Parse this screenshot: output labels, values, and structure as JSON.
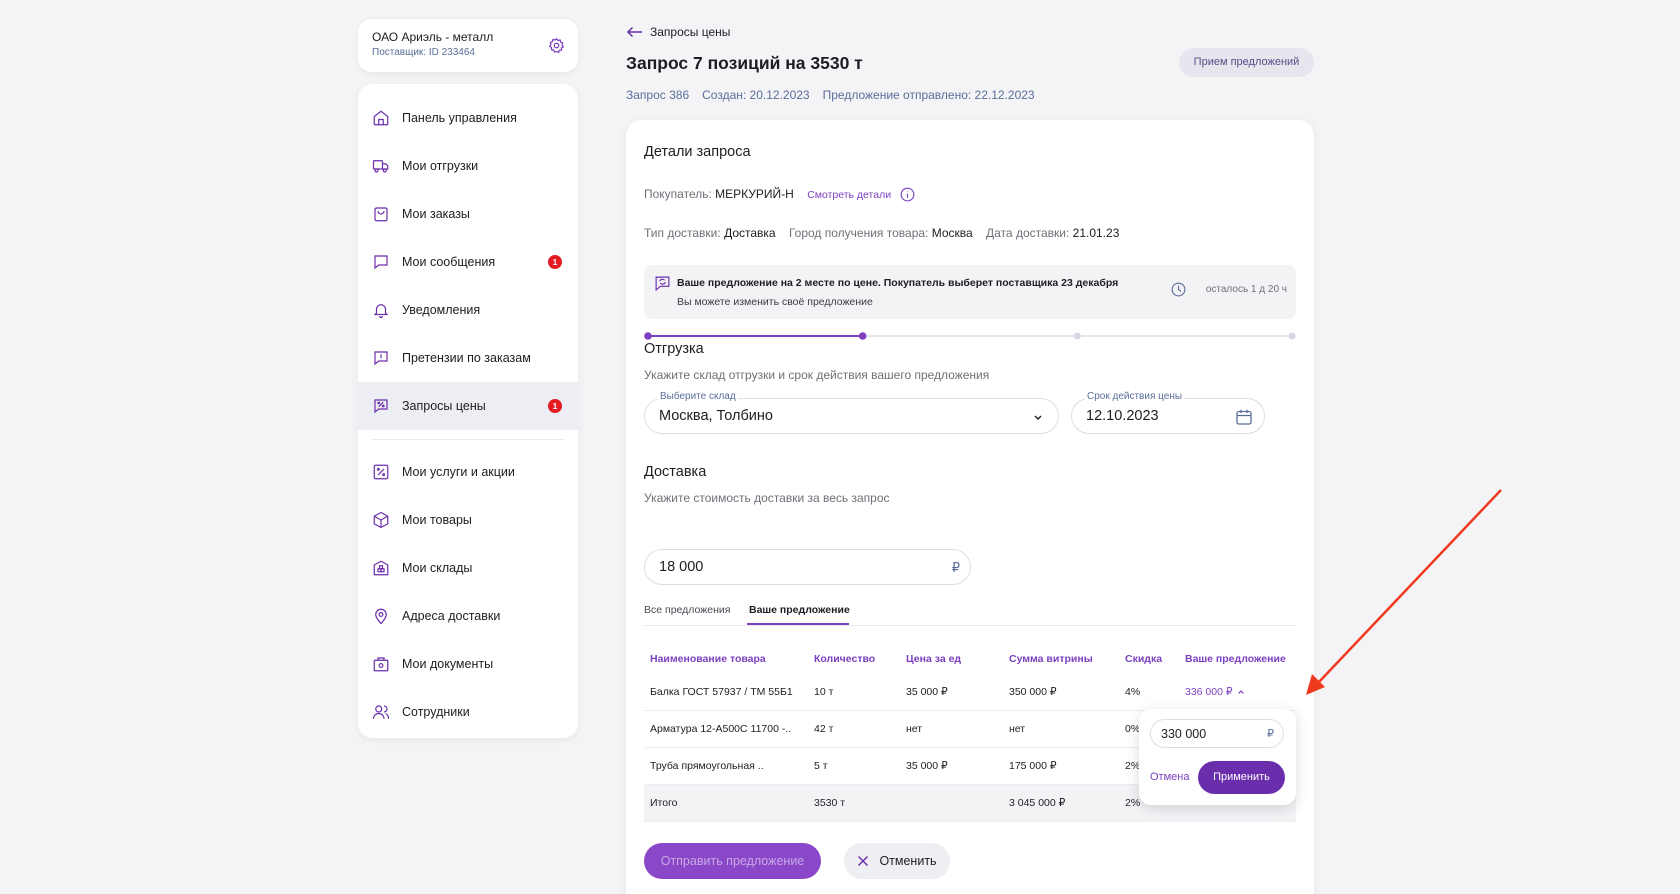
{
  "company": {
    "name": "ОАО Ариэль - металл",
    "supplier_id": "Поставщик: ID 233464"
  },
  "sidebar": {
    "items": [
      {
        "label": "Панель управления",
        "icon": "home-icon"
      },
      {
        "label": "Мои отгрузки",
        "icon": "truck-icon"
      },
      {
        "label": "Мои заказы",
        "icon": "bag-icon"
      },
      {
        "label": "Мои сообщения",
        "icon": "message-icon",
        "badge": "1"
      },
      {
        "label": "Уведомления",
        "icon": "bell-icon"
      },
      {
        "label": "Претензии по заказам",
        "icon": "claim-icon"
      },
      {
        "label": "Запросы цены",
        "icon": "percent-chat-icon",
        "badge": "1",
        "active": true
      },
      {
        "label": "Мои услуги и акции",
        "icon": "percent-icon"
      },
      {
        "label": "Мои товары",
        "icon": "box-icon"
      },
      {
        "label": "Мои склады",
        "icon": "warehouse-icon"
      },
      {
        "label": "Адреса доставки",
        "icon": "pin-icon"
      },
      {
        "label": "Мои документы",
        "icon": "documents-icon"
      },
      {
        "label": "Сотрудники",
        "icon": "users-icon"
      }
    ]
  },
  "header": {
    "back_label": "Запросы цены",
    "title": "Запрос 7 позиций на 3530 т",
    "status": "Прием предложений",
    "request_no": "Запрос 386",
    "created": "Создан: 20.12.2023",
    "sent": "Предложение отправлено: 22.12.2023"
  },
  "details": {
    "title": "Детали запроса",
    "buyer_label": "Покупатель:",
    "buyer": "МЕРКУРИЙ-Н",
    "details_link": "Смотреть детали",
    "delivery_type_label": "Тип доставки:",
    "delivery_type": "Доставка",
    "city_label": "Город получения товара:",
    "city": "Москва",
    "date_label": "Дата доставки:",
    "date": "21.01.23"
  },
  "notice": {
    "line1": "Ваше предложение на 2 месте по цене. Покупатель выберет поставщика 23 декабря",
    "line2": "Вы можете изменить своё предложение",
    "remaining": "осталось 1 д 20 ч"
  },
  "stepper": {
    "steps": 4,
    "current": 2
  },
  "shipment": {
    "title": "Отгрузка",
    "hint": "Укажите склад отгрузки и срок действия вашего предложения",
    "warehouse_label": "Выберите склад",
    "warehouse_value": "Москва, Толбино",
    "validity_label": "Срок действия цены",
    "validity_value": "12.10.2023"
  },
  "delivery": {
    "title": "Доставка",
    "hint": "Укажите стоимость доставки за весь запрос",
    "cost": "18 000",
    "currency": "₽"
  },
  "tabs": {
    "all": "Все предложения",
    "mine": "Ваше предложение"
  },
  "table": {
    "headers": [
      "Наименование товара",
      "Количество",
      "Цена за ед",
      "Сумма витрины",
      "Скидка",
      "Ваше предложение"
    ],
    "rows": [
      [
        "Балка ГОСТ 57937 / ТМ 55Б1",
        "10 т",
        "35 000 ₽",
        "350 000 ₽",
        "4%",
        "336 000 ₽"
      ],
      [
        "Арматура 12-А500С 11700 -..",
        "42 т",
        "нет",
        "нет",
        "0%",
        ""
      ],
      [
        "Труба прямоугольная ..",
        "5 т",
        "35 000 ₽",
        "175 000 ₽",
        "2%",
        ""
      ],
      [
        "Итого",
        "3530 т",
        "",
        "3 045 000 ₽",
        "2%",
        ""
      ]
    ]
  },
  "popover": {
    "value": "330 000",
    "currency": "₽",
    "cancel": "Отмена",
    "apply": "Применить"
  },
  "actions": {
    "submit": "Отправить предложение",
    "cancel": "Отменить"
  },
  "colors": {
    "accent": "#7b3fbf",
    "accent_dark": "#6a2dac",
    "badge": "#e31b23",
    "annotation_arrow": "#f03a1f"
  }
}
